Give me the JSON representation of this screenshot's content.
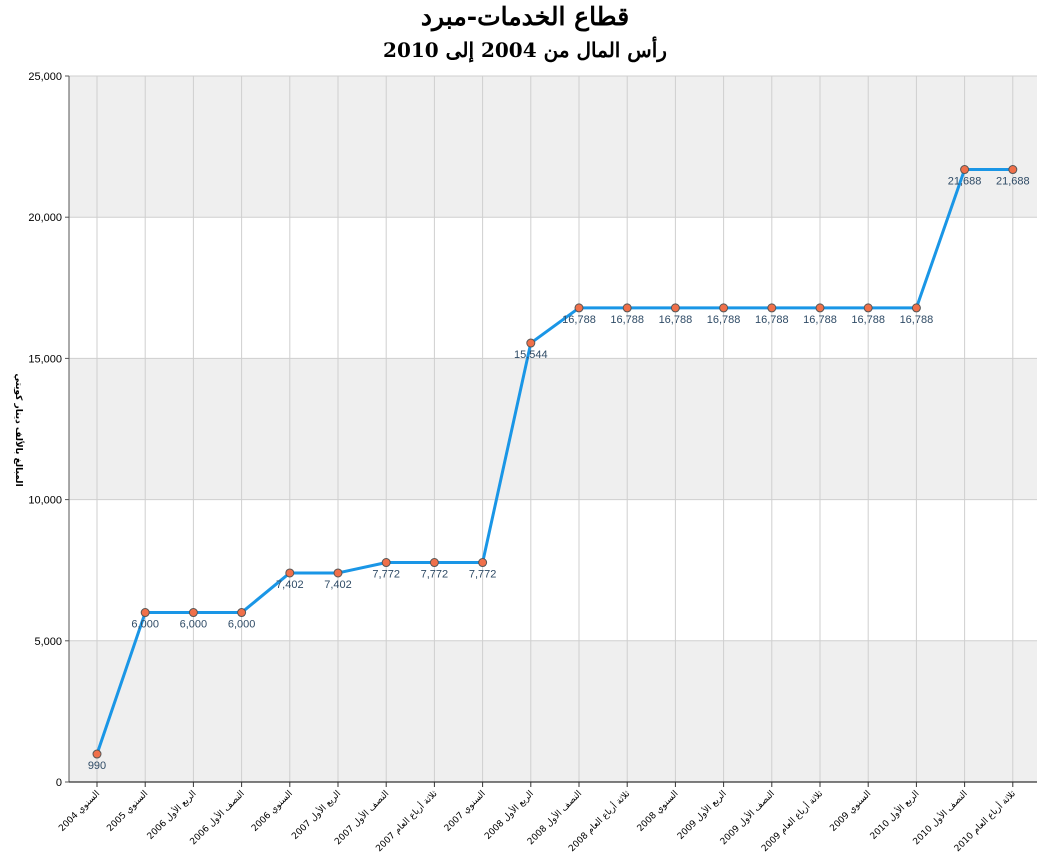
{
  "chart_data": {
    "type": "line",
    "title": "قطاع الخدمات-مبرد",
    "subtitle": "رأس المال من 2004 إلى 2010",
    "ylabel": "المبالغ بالألف دينار كويتي",
    "xlabel": "",
    "ylim": [
      0,
      25000
    ],
    "y_ticks": [
      "0",
      "5,000",
      "10,000",
      "15,000",
      "20,000",
      "25,000"
    ],
    "grid": true,
    "categories": [
      "السنوي 2004",
      "السنوي 2005",
      "الربع الأول 2006",
      "النصف الأول 2006",
      "السنوي 2006",
      "الربع الأول 2007",
      "النصف الأول 2007",
      "ثلاثة أرباع العام 2007",
      "السنوي 2007",
      "الربع الأول 2008",
      "النصف الأول 2008",
      "ثلاثة أرباع العام 2008",
      "السنوي 2008",
      "الربع الأول 2009",
      "النصف الأول 2009",
      "ثلاثة أرباع العام 2009",
      "السنوي 2009",
      "الربع الأول 2010",
      "النصف الأول 2010",
      "ثلاثة أرباع العام 2010"
    ],
    "series": [
      {
        "values": [
          990,
          6000,
          6000,
          6000,
          7402,
          7402,
          7772,
          7772,
          7772,
          15544,
          16788,
          16788,
          16788,
          16788,
          16788,
          16788,
          16788,
          16788,
          21688,
          21688
        ],
        "labels": [
          "990",
          "6,000",
          "6,000",
          "6,000",
          "7,402",
          "7,402",
          "7,772",
          "7,772",
          "7,772",
          "15,544",
          "16,788",
          "16,788",
          "16,788",
          "16,788",
          "16,788",
          "16,788",
          "16,788",
          "16,788",
          "21,688",
          "21,688"
        ]
      }
    ],
    "colors": {
      "line": "#1a96e6",
      "marker_fill": "#f0704a",
      "marker_stroke": "#555555",
      "band": "#efefef",
      "grid": "#cfcfcf",
      "label": "#2f4b66"
    }
  }
}
